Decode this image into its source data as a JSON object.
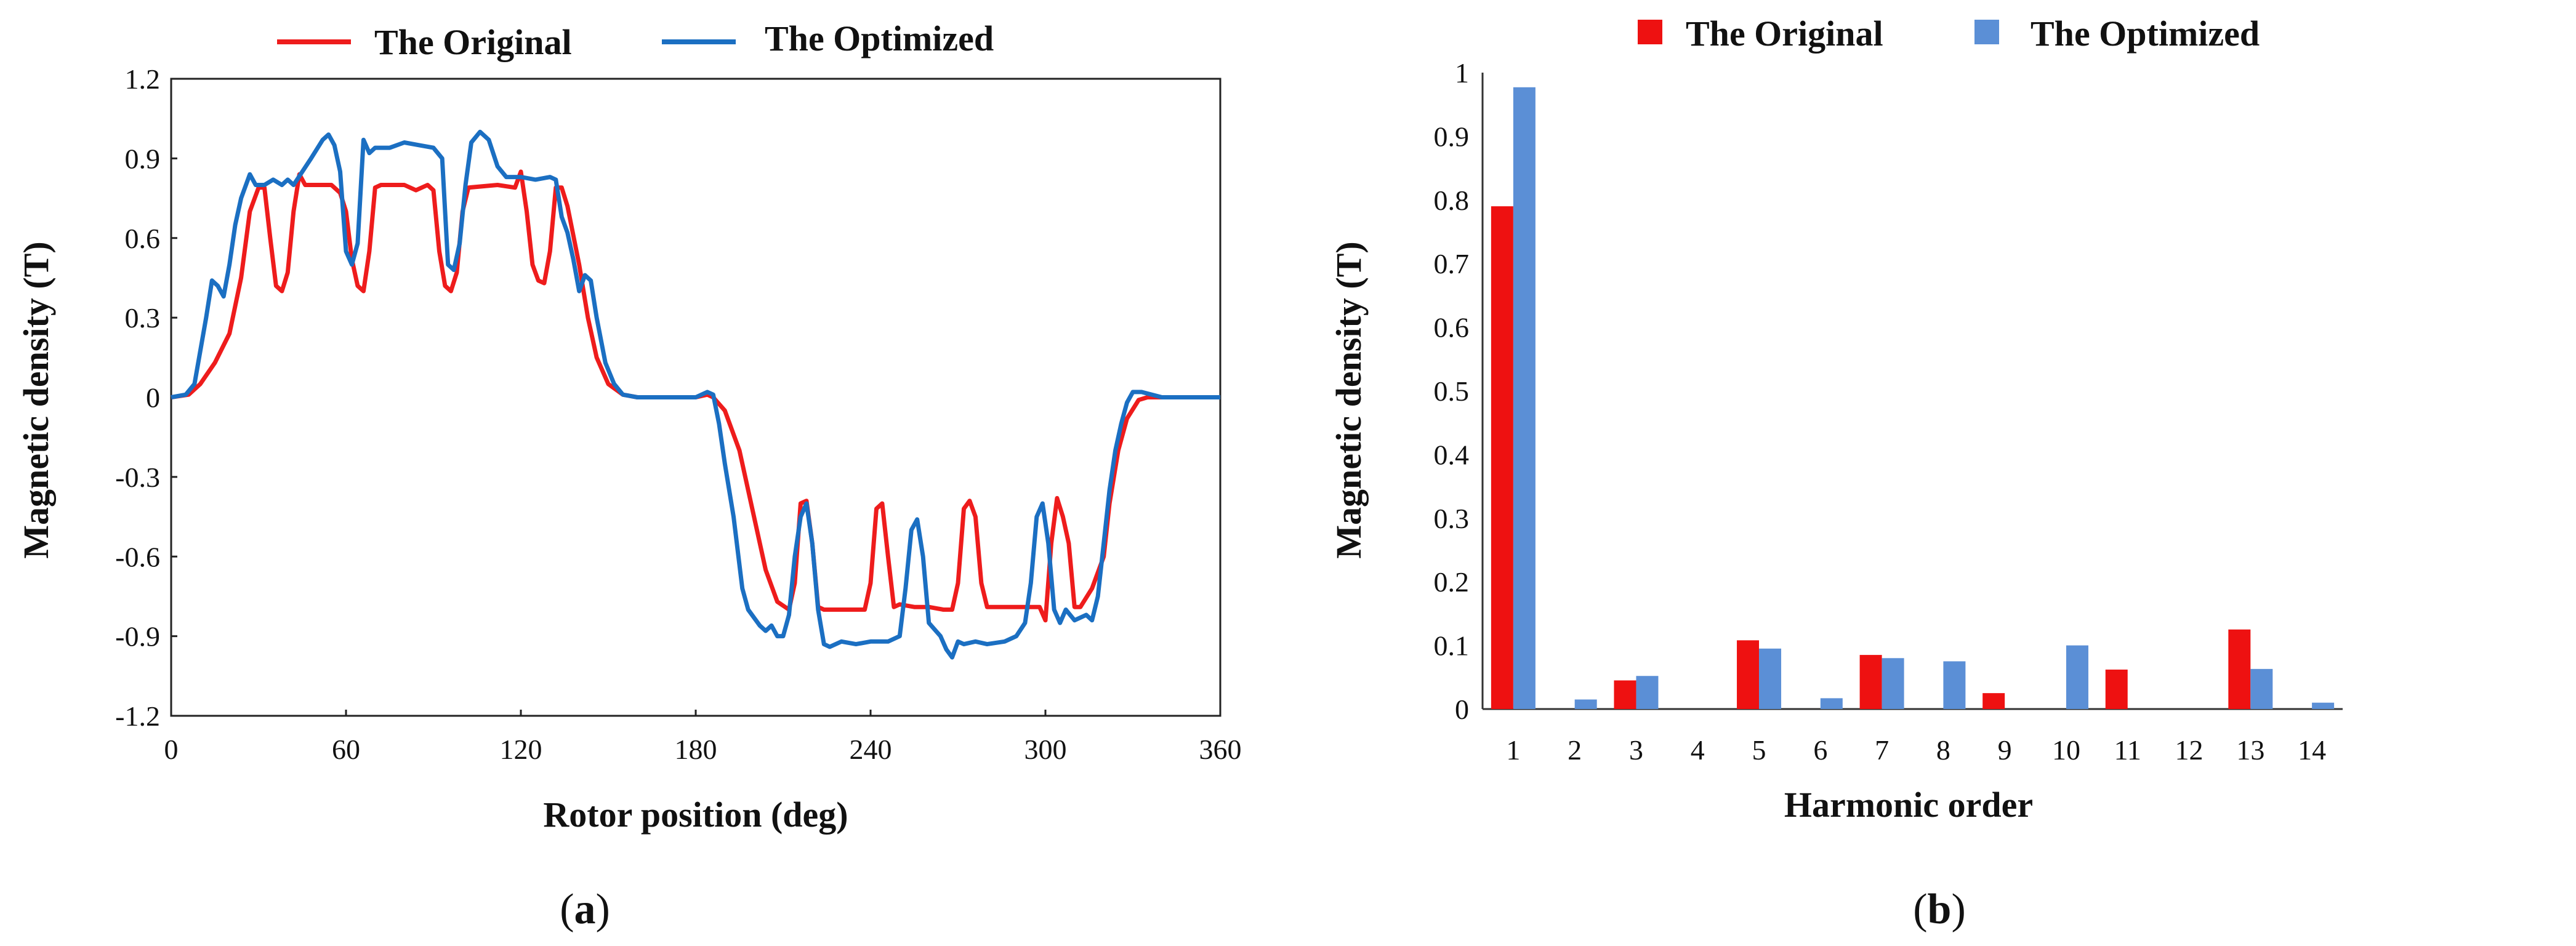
{
  "chart_data": [
    {
      "panel": "(a)",
      "panel_letter": "a",
      "type": "line",
      "xlabel": "Rotor position (deg)",
      "ylabel": "Magnetic density (T)",
      "xlim": [
        0,
        360
      ],
      "ylim": [
        -1.2,
        1.2
      ],
      "xticks": [
        0,
        60,
        120,
        180,
        240,
        300,
        360
      ],
      "yticks": [
        1.2,
        0.9,
        0.6,
        0.3,
        0,
        -0.3,
        -0.6,
        -0.9,
        -1.2
      ],
      "yticks_labels": [
        "1.2",
        "0.9",
        "0.6",
        "0.3",
        "0",
        "-0.3",
        "-0.6",
        "-0.9",
        "-1.2"
      ],
      "legend": [
        "The Original",
        "The Optimized"
      ],
      "series": [
        {
          "name": "The Original",
          "color": "#ee1c1c",
          "points": [
            [
              0,
              0
            ],
            [
              6,
              0.01
            ],
            [
              10,
              0.05
            ],
            [
              15,
              0.13
            ],
            [
              20,
              0.24
            ],
            [
              24,
              0.45
            ],
            [
              27,
              0.7
            ],
            [
              30,
              0.79
            ],
            [
              32,
              0.79
            ],
            [
              34,
              0.6
            ],
            [
              36,
              0.42
            ],
            [
              38,
              0.4
            ],
            [
              40,
              0.47
            ],
            [
              42,
              0.7
            ],
            [
              44,
              0.84
            ],
            [
              46,
              0.8
            ],
            [
              55,
              0.8
            ],
            [
              58,
              0.77
            ],
            [
              60,
              0.7
            ],
            [
              62,
              0.52
            ],
            [
              64,
              0.42
            ],
            [
              66,
              0.4
            ],
            [
              68,
              0.55
            ],
            [
              70,
              0.79
            ],
            [
              72,
              0.8
            ],
            [
              80,
              0.8
            ],
            [
              84,
              0.78
            ],
            [
              88,
              0.8
            ],
            [
              90,
              0.78
            ],
            [
              92,
              0.55
            ],
            [
              94,
              0.42
            ],
            [
              96,
              0.4
            ],
            [
              98,
              0.47
            ],
            [
              100,
              0.7
            ],
            [
              102,
              0.79
            ],
            [
              112,
              0.8
            ],
            [
              118,
              0.79
            ],
            [
              120,
              0.85
            ],
            [
              122,
              0.7
            ],
            [
              124,
              0.5
            ],
            [
              126,
              0.44
            ],
            [
              128,
              0.43
            ],
            [
              130,
              0.55
            ],
            [
              132,
              0.79
            ],
            [
              134,
              0.79
            ],
            [
              136,
              0.72
            ],
            [
              140,
              0.5
            ],
            [
              143,
              0.3
            ],
            [
              146,
              0.15
            ],
            [
              150,
              0.05
            ],
            [
              155,
              0.01
            ],
            [
              160,
              0
            ],
            [
              180,
              0
            ],
            [
              184,
              0.01
            ],
            [
              186,
              0
            ],
            [
              190,
              -0.05
            ],
            [
              195,
              -0.2
            ],
            [
              200,
              -0.45
            ],
            [
              204,
              -0.65
            ],
            [
              208,
              -0.77
            ],
            [
              212,
              -0.8
            ],
            [
              214,
              -0.7
            ],
            [
              216,
              -0.4
            ],
            [
              218,
              -0.39
            ],
            [
              220,
              -0.55
            ],
            [
              222,
              -0.79
            ],
            [
              224,
              -0.8
            ],
            [
              238,
              -0.8
            ],
            [
              240,
              -0.7
            ],
            [
              242,
              -0.42
            ],
            [
              244,
              -0.4
            ],
            [
              246,
              -0.6
            ],
            [
              248,
              -0.79
            ],
            [
              250,
              -0.78
            ],
            [
              255,
              -0.79
            ],
            [
              260,
              -0.79
            ],
            [
              265,
              -0.8
            ],
            [
              268,
              -0.8
            ],
            [
              270,
              -0.7
            ],
            [
              272,
              -0.42
            ],
            [
              274,
              -0.39
            ],
            [
              276,
              -0.45
            ],
            [
              278,
              -0.7
            ],
            [
              280,
              -0.79
            ],
            [
              298,
              -0.79
            ],
            [
              300,
              -0.84
            ],
            [
              302,
              -0.55
            ],
            [
              304,
              -0.38
            ],
            [
              306,
              -0.45
            ],
            [
              308,
              -0.55
            ],
            [
              310,
              -0.79
            ],
            [
              312,
              -0.79
            ],
            [
              316,
              -0.72
            ],
            [
              320,
              -0.6
            ],
            [
              322,
              -0.4
            ],
            [
              325,
              -0.2
            ],
            [
              328,
              -0.08
            ],
            [
              332,
              -0.01
            ],
            [
              335,
              0
            ],
            [
              360,
              0
            ]
          ]
        },
        {
          "name": "The Optimized",
          "color": "#1b6fc2",
          "points": [
            [
              0,
              0
            ],
            [
              5,
              0.01
            ],
            [
              8,
              0.05
            ],
            [
              12,
              0.3
            ],
            [
              14,
              0.44
            ],
            [
              16,
              0.42
            ],
            [
              18,
              0.38
            ],
            [
              20,
              0.5
            ],
            [
              22,
              0.65
            ],
            [
              24,
              0.75
            ],
            [
              27,
              0.84
            ],
            [
              29,
              0.8
            ],
            [
              32,
              0.8
            ],
            [
              35,
              0.82
            ],
            [
              38,
              0.8
            ],
            [
              40,
              0.82
            ],
            [
              42,
              0.8
            ],
            [
              45,
              0.85
            ],
            [
              48,
              0.9
            ],
            [
              52,
              0.97
            ],
            [
              54,
              0.99
            ],
            [
              56,
              0.95
            ],
            [
              58,
              0.85
            ],
            [
              60,
              0.55
            ],
            [
              62,
              0.5
            ],
            [
              64,
              0.58
            ],
            [
              66,
              0.97
            ],
            [
              68,
              0.92
            ],
            [
              70,
              0.94
            ],
            [
              75,
              0.94
            ],
            [
              80,
              0.96
            ],
            [
              85,
              0.95
            ],
            [
              90,
              0.94
            ],
            [
              93,
              0.9
            ],
            [
              95,
              0.5
            ],
            [
              97,
              0.48
            ],
            [
              99,
              0.58
            ],
            [
              101,
              0.8
            ],
            [
              103,
              0.96
            ],
            [
              106,
              1.0
            ],
            [
              109,
              0.97
            ],
            [
              112,
              0.87
            ],
            [
              115,
              0.83
            ],
            [
              120,
              0.83
            ],
            [
              125,
              0.82
            ],
            [
              130,
              0.83
            ],
            [
              132,
              0.82
            ],
            [
              134,
              0.68
            ],
            [
              136,
              0.62
            ],
            [
              138,
              0.52
            ],
            [
              140,
              0.4
            ],
            [
              142,
              0.46
            ],
            [
              144,
              0.44
            ],
            [
              146,
              0.3
            ],
            [
              149,
              0.13
            ],
            [
              152,
              0.05
            ],
            [
              155,
              0.01
            ],
            [
              160,
              0
            ],
            [
              180,
              0
            ],
            [
              184,
              0.02
            ],
            [
              186,
              0.01
            ],
            [
              188,
              -0.1
            ],
            [
              190,
              -0.25
            ],
            [
              193,
              -0.45
            ],
            [
              196,
              -0.72
            ],
            [
              198,
              -0.8
            ],
            [
              202,
              -0.86
            ],
            [
              204,
              -0.88
            ],
            [
              206,
              -0.86
            ],
            [
              208,
              -0.9
            ],
            [
              210,
              -0.9
            ],
            [
              212,
              -0.82
            ],
            [
              214,
              -0.6
            ],
            [
              216,
              -0.45
            ],
            [
              218,
              -0.4
            ],
            [
              220,
              -0.55
            ],
            [
              222,
              -0.8
            ],
            [
              224,
              -0.93
            ],
            [
              226,
              -0.94
            ],
            [
              230,
              -0.92
            ],
            [
              235,
              -0.93
            ],
            [
              240,
              -0.92
            ],
            [
              246,
              -0.92
            ],
            [
              250,
              -0.9
            ],
            [
              252,
              -0.72
            ],
            [
              254,
              -0.5
            ],
            [
              256,
              -0.46
            ],
            [
              258,
              -0.6
            ],
            [
              260,
              -0.85
            ],
            [
              264,
              -0.9
            ],
            [
              266,
              -0.95
            ],
            [
              268,
              -0.98
            ],
            [
              270,
              -0.92
            ],
            [
              272,
              -0.93
            ],
            [
              276,
              -0.92
            ],
            [
              280,
              -0.93
            ],
            [
              286,
              -0.92
            ],
            [
              290,
              -0.9
            ],
            [
              293,
              -0.85
            ],
            [
              295,
              -0.7
            ],
            [
              297,
              -0.45
            ],
            [
              299,
              -0.4
            ],
            [
              301,
              -0.55
            ],
            [
              303,
              -0.8
            ],
            [
              305,
              -0.85
            ],
            [
              307,
              -0.8
            ],
            [
              310,
              -0.84
            ],
            [
              314,
              -0.82
            ],
            [
              316,
              -0.84
            ],
            [
              318,
              -0.75
            ],
            [
              320,
              -0.55
            ],
            [
              322,
              -0.35
            ],
            [
              324,
              -0.2
            ],
            [
              326,
              -0.1
            ],
            [
              328,
              -0.02
            ],
            [
              330,
              0.02
            ],
            [
              333,
              0.02
            ],
            [
              340,
              0
            ],
            [
              360,
              0
            ]
          ]
        }
      ]
    },
    {
      "panel": "(b)",
      "panel_letter": "b",
      "type": "bar",
      "xlabel": "Harmonic order",
      "ylabel": "Magnetic density (T)",
      "ylim": [
        0,
        1
      ],
      "yticks": [
        0,
        0.1,
        0.2,
        0.3,
        0.4,
        0.5,
        0.6,
        0.7,
        0.8,
        0.9,
        1
      ],
      "yticks_labels": [
        "0",
        "0.1",
        "0.2",
        "0.3",
        "0.4",
        "0.5",
        "0.6",
        "0.7",
        "0.8",
        "0.9",
        "1"
      ],
      "categories": [
        "1",
        "2",
        "3",
        "4",
        "5",
        "6",
        "7",
        "8",
        "9",
        "10",
        "11",
        "12",
        "13",
        "14"
      ],
      "legend": [
        "The Original",
        "The Optimized"
      ],
      "series": [
        {
          "name": "The Original",
          "color": "#ee1111",
          "values": [
            0.79,
            0,
            0.045,
            0,
            0.108,
            0,
            0.085,
            0,
            0.025,
            0,
            0.062,
            0,
            0.125,
            0
          ]
        },
        {
          "name": "The Optimized",
          "color": "#5b8fd6",
          "values": [
            0.977,
            0.015,
            0.052,
            0,
            0.095,
            0.017,
            0.08,
            0.075,
            0,
            0.1,
            0,
            0,
            0.063,
            0.01
          ]
        }
      ]
    }
  ]
}
